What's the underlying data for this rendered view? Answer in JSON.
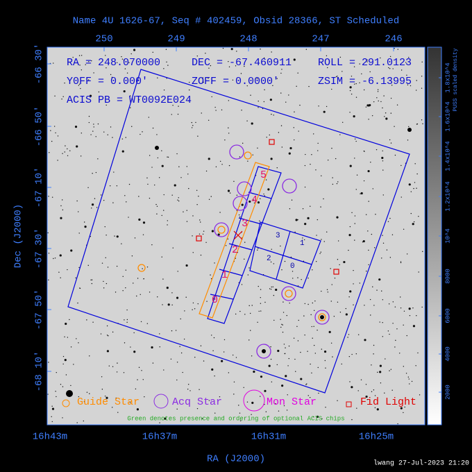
{
  "header": {
    "title": "Name 4U 1626-67, Seq # 402459, Obsid 28366, ST Scheduled"
  },
  "axes": {
    "top_ticks": [
      "250",
      "249",
      "248",
      "247",
      "246"
    ],
    "left_ticks": [
      "-66 30'",
      "-66 50'",
      "-67 10'",
      "-67 30'",
      "-67 50'",
      "-68 10'"
    ],
    "bottom_ticks": [
      "16h43m",
      "16h37m",
      "16h31m",
      "16h25m"
    ],
    "xlabel": "RA (J2000)",
    "ylabel": "Dec (J2000)"
  },
  "info": [
    "RA = 248.070000",
    "DEC = -67.460911",
    "ROLL = 291.0123",
    "Y0FF = 0.000'",
    "ZOFF = 0.0000'",
    "ZSIM = -6.13995",
    "ACIS PB = WT0092E024"
  ],
  "chips": {
    "acis_i": [
      "0",
      "1",
      "2",
      "3"
    ],
    "acis_s": [
      "0",
      "1",
      "2",
      "3",
      "4",
      "5"
    ]
  },
  "legend": [
    "Guide Star",
    "Acq Star",
    "Mon Star",
    "Fid Light"
  ],
  "note": "Green denotes presence and ordering of optional ACIS chips",
  "colorbar": {
    "title": "PUSS scaled density",
    "ticks": [
      "2000",
      "4000",
      "6000",
      "8000",
      "10^4",
      "1.2x10^4",
      "1.4x10^4",
      "1.6x10^4",
      "1.8x10^4"
    ]
  },
  "footer": "lwang 27-Jul-2023 21:20"
}
